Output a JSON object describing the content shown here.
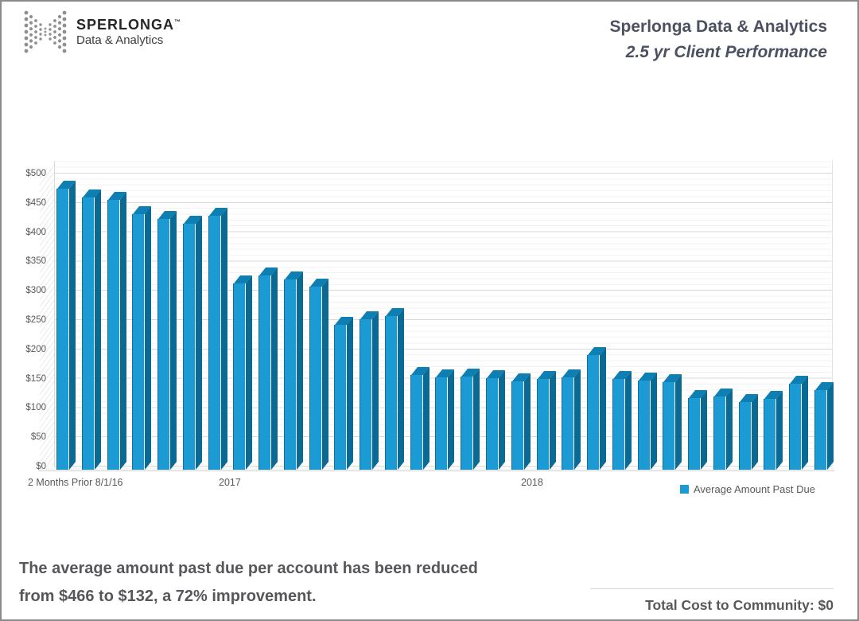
{
  "header": {
    "logo_brand": "SPERLONGA",
    "logo_tm": "™",
    "logo_tagline": "Data & Analytics",
    "title_line1": "Sperlonga Data & Analytics",
    "title_line2": "2.5 yr Client Performance"
  },
  "chart_data": {
    "type": "bar",
    "title": "Sperlonga Data & Analytics",
    "subtitle": "2.5 yr Client Performance",
    "series_name": "Average Amount Past Due",
    "values": [
      466,
      452,
      447,
      424,
      416,
      408,
      421,
      309,
      322,
      315,
      304,
      240,
      250,
      255,
      157,
      153,
      154,
      152,
      146,
      150,
      153,
      190,
      150,
      148,
      145,
      119,
      121,
      112,
      117,
      143,
      132
    ],
    "x_axis_labels": [
      "2 Months Prior 8/1/16",
      "2017",
      "2018"
    ],
    "ytick_labels": [
      "$0",
      "$50",
      "$100",
      "$150",
      "$200",
      "$250",
      "$300",
      "$350",
      "$400",
      "$450",
      "$500"
    ],
    "ylim": [
      0,
      500
    ],
    "ytick_step": 50,
    "grid": true,
    "legend": [
      "Average Amount Past Due"
    ],
    "legend_position": "bottom-right",
    "bar_color": "#1B9AD3",
    "bar_top_color": "#0D7FB2",
    "bar_side_color": "#0A6A94"
  },
  "footer": {
    "summary_line1": "The average amount past due per account has been reduced",
    "summary_line2": "from $466 to $132, a 72% improvement.",
    "total_cost_label": "Total Cost to Community: $0"
  }
}
